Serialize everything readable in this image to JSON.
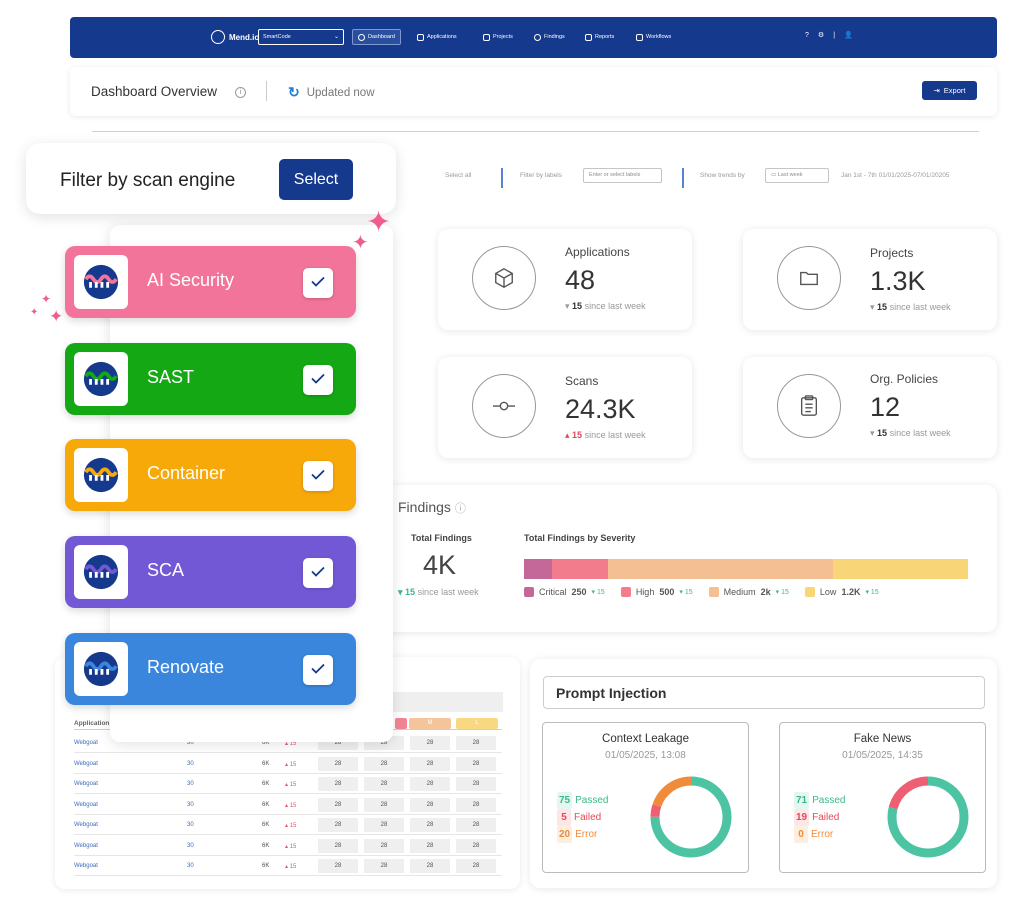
{
  "nav": {
    "brand": "Mend.io",
    "org_select": "SmartCode",
    "items": [
      {
        "label": "Dashboard",
        "icon": "dashboard-icon"
      },
      {
        "label": "Applications",
        "icon": "cube-icon"
      },
      {
        "label": "Projects",
        "icon": "folder-icon"
      },
      {
        "label": "Findings",
        "icon": "bug-icon"
      },
      {
        "label": "Reports",
        "icon": "report-icon"
      },
      {
        "label": "Workflows",
        "icon": "workflow-icon"
      }
    ]
  },
  "header": {
    "title": "Dashboard Overview",
    "updated": "Updated now",
    "export_label": "Export"
  },
  "filters": {
    "select_all": "Select all",
    "filter_by_labels": "Filter by labels",
    "labels_placeholder": "Enter or select labels",
    "show_trends_by": "Show trends by",
    "period": "Last week",
    "date_range": "Jan 1st - 7th 01/01/2025-07/01/20205"
  },
  "stats": [
    {
      "label": "Applications",
      "value": "48",
      "delta": "15",
      "delta_text": "since last week",
      "direction": "down",
      "icon": "cube-icon"
    },
    {
      "label": "Projects",
      "value": "1.3K",
      "delta": "15",
      "delta_text": "since last week",
      "direction": "down",
      "icon": "folder-icon"
    },
    {
      "label": "Scans",
      "value": "24.3K",
      "delta": "15",
      "delta_text": "since last week",
      "direction": "up",
      "icon": "commit-icon"
    },
    {
      "label": "Org. Policies",
      "value": "12",
      "delta": "15",
      "delta_text": "since last week",
      "direction": "down",
      "icon": "clipboard-icon"
    }
  ],
  "findings": {
    "title": "Findings",
    "total_label": "Total Findings",
    "total_value": "4K",
    "delta": "15",
    "delta_text": "since last week",
    "severity_title": "Total Findings by Severity",
    "severities": [
      {
        "name": "Critical",
        "value": "250",
        "count": 250,
        "change": "15",
        "color": "#c4689a"
      },
      {
        "name": "High",
        "value": "500",
        "count": 500,
        "change": "15",
        "color": "#f27b8c"
      },
      {
        "name": "Medium",
        "value": "2k",
        "count": 2000,
        "change": "15",
        "color": "#f4c093"
      },
      {
        "name": "Low",
        "value": "1.2K",
        "count": 1200,
        "change": "15",
        "color": "#f8d677"
      }
    ]
  },
  "table": {
    "header_app": "Application",
    "sev_headers": [
      "M",
      "L"
    ],
    "rows": [
      {
        "app": "Webgoat",
        "projects": "30",
        "findings": "6K",
        "change": "15",
        "c1": "28",
        "c2": "28",
        "c3": "28",
        "c4": "28"
      },
      {
        "app": "Webgoat",
        "projects": "30",
        "findings": "6K",
        "change": "15",
        "c1": "28",
        "c2": "28",
        "c3": "28",
        "c4": "28"
      },
      {
        "app": "Webgoat",
        "projects": "30",
        "findings": "6K",
        "change": "15",
        "c1": "28",
        "c2": "28",
        "c3": "28",
        "c4": "28"
      },
      {
        "app": "Webgoat",
        "projects": "30",
        "findings": "6K",
        "change": "15",
        "c1": "28",
        "c2": "28",
        "c3": "28",
        "c4": "28"
      },
      {
        "app": "Webgoat",
        "projects": "30",
        "findings": "6K",
        "change": "15",
        "c1": "28",
        "c2": "28",
        "c3": "28",
        "c4": "28"
      },
      {
        "app": "Webgoat",
        "projects": "30",
        "findings": "6K",
        "change": "15",
        "c1": "28",
        "c2": "28",
        "c3": "28",
        "c4": "28"
      },
      {
        "app": "Webgoat",
        "projects": "30",
        "findings": "6K",
        "change": "15",
        "c1": "28",
        "c2": "28",
        "c3": "28",
        "c4": "28"
      }
    ]
  },
  "prompt_injection": {
    "title": "Prompt Injection",
    "tests": [
      {
        "name": "Context Leakage",
        "date": "01/05/2025, 13:08",
        "passed": 75,
        "failed": 5,
        "error": 20,
        "passed_label": "Passed",
        "failed_label": "Failed",
        "error_label": "Error"
      },
      {
        "name": "Fake News",
        "date": "01/05/2025, 14:35",
        "passed": 71,
        "failed": 19,
        "error": 0,
        "passed_label": "Passed",
        "failed_label": "Failed",
        "error_label": "Error"
      }
    ],
    "colors": {
      "passed": "#4cc4a3",
      "failed": "#ee5f73",
      "error": "#ef8b3a"
    }
  },
  "engine_filter": {
    "label": "Filter by scan engine",
    "select_label": "Select",
    "engines": [
      {
        "name": "AI Security",
        "color": "#f2749a",
        "checked": true
      },
      {
        "name": "SAST",
        "color": "#14a814",
        "checked": true
      },
      {
        "name": "Container",
        "color": "#f8a90a",
        "checked": true
      },
      {
        "name": "SCA",
        "color": "#7358d6",
        "checked": true
      },
      {
        "name": "Renovate",
        "color": "#3a86dd",
        "checked": true
      }
    ]
  }
}
